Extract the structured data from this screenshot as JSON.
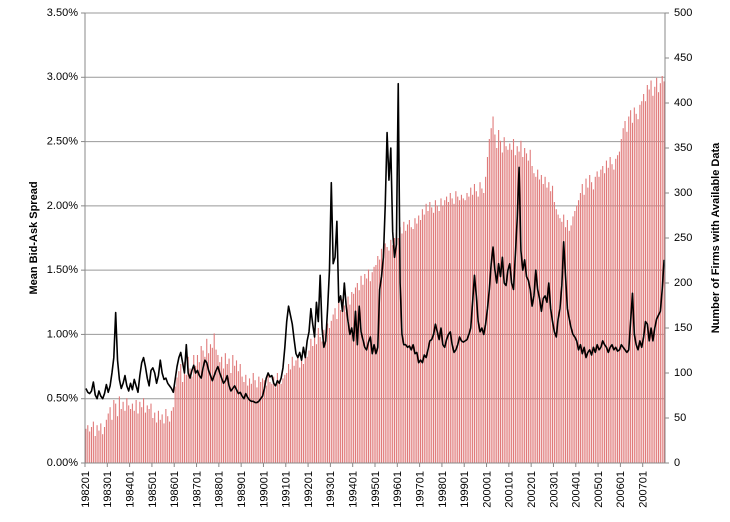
{
  "chart_data": {
    "type": "combo",
    "y_label": "Mean Bid-Ask Spread",
    "y2_label": "Number of Firms with Available Data",
    "categories": [
      "198201",
      null,
      null,
      null,
      null,
      null,
      null,
      null,
      null,
      null,
      null,
      null,
      "198301",
      null,
      null,
      null,
      null,
      null,
      null,
      null,
      null,
      null,
      null,
      null,
      "198401",
      null,
      null,
      null,
      null,
      null,
      null,
      null,
      null,
      null,
      null,
      null,
      "198501",
      null,
      null,
      null,
      null,
      null,
      null,
      null,
      null,
      null,
      null,
      null,
      "198601",
      null,
      null,
      null,
      null,
      null,
      null,
      null,
      null,
      null,
      null,
      null,
      "198701",
      null,
      null,
      null,
      null,
      null,
      null,
      null,
      null,
      null,
      null,
      null,
      "198801",
      null,
      null,
      null,
      null,
      null,
      null,
      null,
      null,
      null,
      null,
      null,
      "198901",
      null,
      null,
      null,
      null,
      null,
      null,
      null,
      null,
      null,
      null,
      null,
      "199001",
      null,
      null,
      null,
      null,
      null,
      null,
      null,
      null,
      null,
      null,
      null,
      "199101",
      null,
      null,
      null,
      null,
      null,
      null,
      null,
      null,
      null,
      null,
      null,
      "199201",
      null,
      null,
      null,
      null,
      null,
      null,
      null,
      null,
      null,
      null,
      null,
      "199301",
      null,
      null,
      null,
      null,
      null,
      null,
      null,
      null,
      null,
      null,
      null,
      "199401",
      null,
      null,
      null,
      null,
      null,
      null,
      null,
      null,
      null,
      null,
      null,
      "199501",
      null,
      null,
      null,
      null,
      null,
      null,
      null,
      null,
      null,
      null,
      null,
      "199601",
      null,
      null,
      null,
      null,
      null,
      null,
      null,
      null,
      null,
      null,
      null,
      "199701",
      null,
      null,
      null,
      null,
      null,
      null,
      null,
      null,
      null,
      null,
      null,
      "199801",
      null,
      null,
      null,
      null,
      null,
      null,
      null,
      null,
      null,
      null,
      null,
      "199901",
      null,
      null,
      null,
      null,
      null,
      null,
      null,
      null,
      null,
      null,
      null,
      "200001",
      null,
      null,
      null,
      null,
      null,
      null,
      null,
      null,
      null,
      null,
      null,
      "200101",
      null,
      null,
      null,
      null,
      null,
      null,
      null,
      null,
      null,
      null,
      null,
      "200201",
      null,
      null,
      null,
      null,
      null,
      null,
      null,
      null,
      null,
      null,
      null,
      "200301",
      null,
      null,
      null,
      null,
      null,
      null,
      null,
      null,
      null,
      null,
      null,
      "200401",
      null,
      null,
      null,
      null,
      null,
      null,
      null,
      null,
      null,
      null,
      null,
      "200501",
      null,
      null,
      null,
      null,
      null,
      null,
      null,
      null,
      null,
      null,
      null,
      "200601",
      null,
      null,
      null,
      null,
      null,
      null,
      null,
      null,
      null,
      null,
      null,
      "200701",
      null,
      null,
      null,
      null,
      null,
      null,
      null,
      null,
      null,
      null,
      null
    ],
    "series": [
      {
        "type": "bar",
        "axis": "y2",
        "color": "#e07a7a",
        "values": [
          38,
          42,
          35,
          40,
          46,
          30,
          42,
          36,
          44,
          32,
          40,
          48,
          55,
          62,
          48,
          70,
          66,
          52,
          74,
          60,
          68,
          58,
          72,
          64,
          60,
          66,
          58,
          70,
          55,
          68,
          62,
          72,
          56,
          64,
          60,
          66,
          50,
          56,
          45,
          58,
          48,
          54,
          44,
          60,
          52,
          46,
          58,
          62,
          85,
          95,
          102,
          110,
          90,
          112,
          98,
          118,
          105,
          96,
          120,
          108,
          120,
          112,
          130,
          125,
          118,
          138,
          122,
          132,
          128,
          144,
          126,
          120,
          112,
          118,
          105,
          122,
          110,
          116,
          100,
          120,
          108,
          114,
          102,
          110,
          96,
          90,
          98,
          86,
          94,
          88,
          100,
          92,
          84,
          96,
          90,
          94,
          92,
          86,
          98,
          90,
          88,
          96,
          84,
          100,
          92,
          88,
          94,
          98,
          100,
          110,
          104,
          118,
          108,
          114,
          120,
          106,
          116,
          110,
          122,
          118,
          125,
          138,
          130,
          145,
          132,
          150,
          140,
          135,
          148,
          142,
          155,
          150,
          158,
          165,
          172,
          160,
          178,
          170,
          182,
          175,
          168,
          185,
          176,
          190,
          188,
          195,
          200,
          192,
          208,
          198,
          210,
          205,
          215,
          202,
          212,
          218,
          220,
          230,
          226,
          238,
          232,
          244,
          240,
          236,
          248,
          242,
          250,
          255,
          250,
          262,
          255,
          268,
          258,
          265,
          270,
          262,
          260,
          272,
          266,
          275,
          270,
          282,
          276,
          288,
          280,
          290,
          284,
          278,
          292,
          286,
          280,
          294,
          286,
          292,
          296,
          290,
          300,
          294,
          288,
          302,
          296,
          292,
          298,
          294,
          292,
          300,
          296,
          306,
          298,
          310,
          302,
          296,
          312,
          305,
          300,
          318,
          340,
          360,
          372,
          385,
          365,
          350,
          370,
          358,
          345,
          362,
          352,
          348,
          355,
          348,
          360,
          342,
          352,
          346,
          358,
          340,
          350,
          344,
          336,
          348,
          330,
          322,
          318,
          326,
          315,
          320,
          310,
          318,
          306,
          312,
          302,
          308,
          290,
          282,
          276,
          272,
          268,
          276,
          262,
          270,
          258,
          264,
          274,
          280,
          286,
          292,
          300,
          310,
          298,
          316,
          306,
          320,
          312,
          304,
          318,
          324,
          318,
          326,
          330,
          322,
          336,
          328,
          340,
          332,
          326,
          338,
          342,
          346,
          360,
          372,
          380,
          368,
          385,
          392,
          378,
          395,
          388,
          382,
          398,
          402,
          410,
          402,
          420,
          415,
          425,
          408,
          418,
          428,
          412,
          422,
          430,
          424
        ]
      },
      {
        "type": "line",
        "axis": "y",
        "color": "#000000",
        "values": [
          0.58,
          0.55,
          0.54,
          0.56,
          0.63,
          0.53,
          0.5,
          0.56,
          0.52,
          0.5,
          0.54,
          0.61,
          0.55,
          0.6,
          0.7,
          0.82,
          1.17,
          0.8,
          0.65,
          0.58,
          0.62,
          0.68,
          0.6,
          0.56,
          0.62,
          0.57,
          0.65,
          0.6,
          0.55,
          0.68,
          0.78,
          0.82,
          0.75,
          0.66,
          0.6,
          0.72,
          0.74,
          0.7,
          0.62,
          0.68,
          0.8,
          0.7,
          0.65,
          0.66,
          0.62,
          0.6,
          0.58,
          0.55,
          0.65,
          0.75,
          0.82,
          0.86,
          0.78,
          0.7,
          0.92,
          0.7,
          0.66,
          0.72,
          0.76,
          0.7,
          0.72,
          0.68,
          0.66,
          0.74,
          0.8,
          0.78,
          0.72,
          0.68,
          0.64,
          0.68,
          0.72,
          0.75,
          0.7,
          0.66,
          0.62,
          0.64,
          0.68,
          0.6,
          0.56,
          0.58,
          0.6,
          0.57,
          0.54,
          0.55,
          0.52,
          0.5,
          0.54,
          0.51,
          0.49,
          0.48,
          0.48,
          0.47,
          0.47,
          0.48,
          0.5,
          0.52,
          0.58,
          0.66,
          0.7,
          0.67,
          0.68,
          0.62,
          0.6,
          0.64,
          0.62,
          0.66,
          0.74,
          0.9,
          1.1,
          1.22,
          1.15,
          1.08,
          0.96,
          0.85,
          0.82,
          0.86,
          0.8,
          0.9,
          0.82,
          0.95,
          1.02,
          1.2,
          1.08,
          0.98,
          1.25,
          1.1,
          1.46,
          1.05,
          0.9,
          0.95,
          1.2,
          1.5,
          2.18,
          1.55,
          1.6,
          1.88,
          1.25,
          1.3,
          1.18,
          1.4,
          1.22,
          1.1,
          1.0,
          1.05,
          0.95,
          1.18,
          0.92,
          1.22,
          1.02,
          0.96,
          0.9,
          0.88,
          0.94,
          0.98,
          0.85,
          0.92,
          0.85,
          0.9,
          1.35,
          1.45,
          1.6,
          2.0,
          2.57,
          2.2,
          2.45,
          1.8,
          1.6,
          1.7,
          2.95,
          1.4,
          1.0,
          0.92,
          0.92,
          0.9,
          0.91,
          0.88,
          0.92,
          0.85,
          0.86,
          0.78,
          0.8,
          0.78,
          0.84,
          0.82,
          0.88,
          0.95,
          0.96,
          1.0,
          1.08,
          1.02,
          0.96,
          1.05,
          0.92,
          0.9,
          0.96,
          1.0,
          1.02,
          0.92,
          0.86,
          0.88,
          0.92,
          0.98,
          0.95,
          0.94,
          0.95,
          0.96,
          1.0,
          1.05,
          1.25,
          1.46,
          1.3,
          1.1,
          1.02,
          1.05,
          1.0,
          1.08,
          1.2,
          1.35,
          1.55,
          1.68,
          1.5,
          1.4,
          1.55,
          1.45,
          1.6,
          1.4,
          1.38,
          1.5,
          1.55,
          1.4,
          1.35,
          1.62,
          1.9,
          2.3,
          1.65,
          1.5,
          1.58,
          1.45,
          1.42,
          1.35,
          1.22,
          1.3,
          1.5,
          1.35,
          1.28,
          1.18,
          1.28,
          1.3,
          1.25,
          1.4,
          1.2,
          1.1,
          1.02,
          0.98,
          1.12,
          1.2,
          1.38,
          1.72,
          1.45,
          1.2,
          1.12,
          1.05,
          1.0,
          0.98,
          0.95,
          0.88,
          0.92,
          0.85,
          0.9,
          0.82,
          0.86,
          0.88,
          0.84,
          0.9,
          0.86,
          0.92,
          0.88,
          0.9,
          0.95,
          0.92,
          0.9,
          0.86,
          0.9,
          0.92,
          0.88,
          0.9,
          0.87,
          0.88,
          0.92,
          0.9,
          0.88,
          0.86,
          0.88,
          1.1,
          1.32,
          1.0,
          0.92,
          0.88,
          0.95,
          0.9,
          0.98,
          1.1,
          1.08,
          0.95,
          1.05,
          0.95,
          1.05,
          1.12,
          1.15,
          1.18,
          1.35,
          1.58
        ]
      }
    ],
    "ylim": [
      0,
      3.5
    ],
    "yticks": [
      {
        "value": 0,
        "label": "0.00%"
      },
      {
        "value": 0.5,
        "label": "0.50%"
      },
      {
        "value": 1,
        "label": "1.00%"
      },
      {
        "value": 1.5,
        "label": "1.50%"
      },
      {
        "value": 2,
        "label": "2.00%"
      },
      {
        "value": 2.5,
        "label": "2.50%"
      },
      {
        "value": 3,
        "label": "3.00%"
      },
      {
        "value": 3.5,
        "label": "3.50%"
      }
    ],
    "y2lim": [
      0,
      500
    ],
    "y2ticks": [
      0,
      50,
      100,
      150,
      200,
      250,
      300,
      350,
      400,
      450,
      500
    ],
    "grid": true
  }
}
